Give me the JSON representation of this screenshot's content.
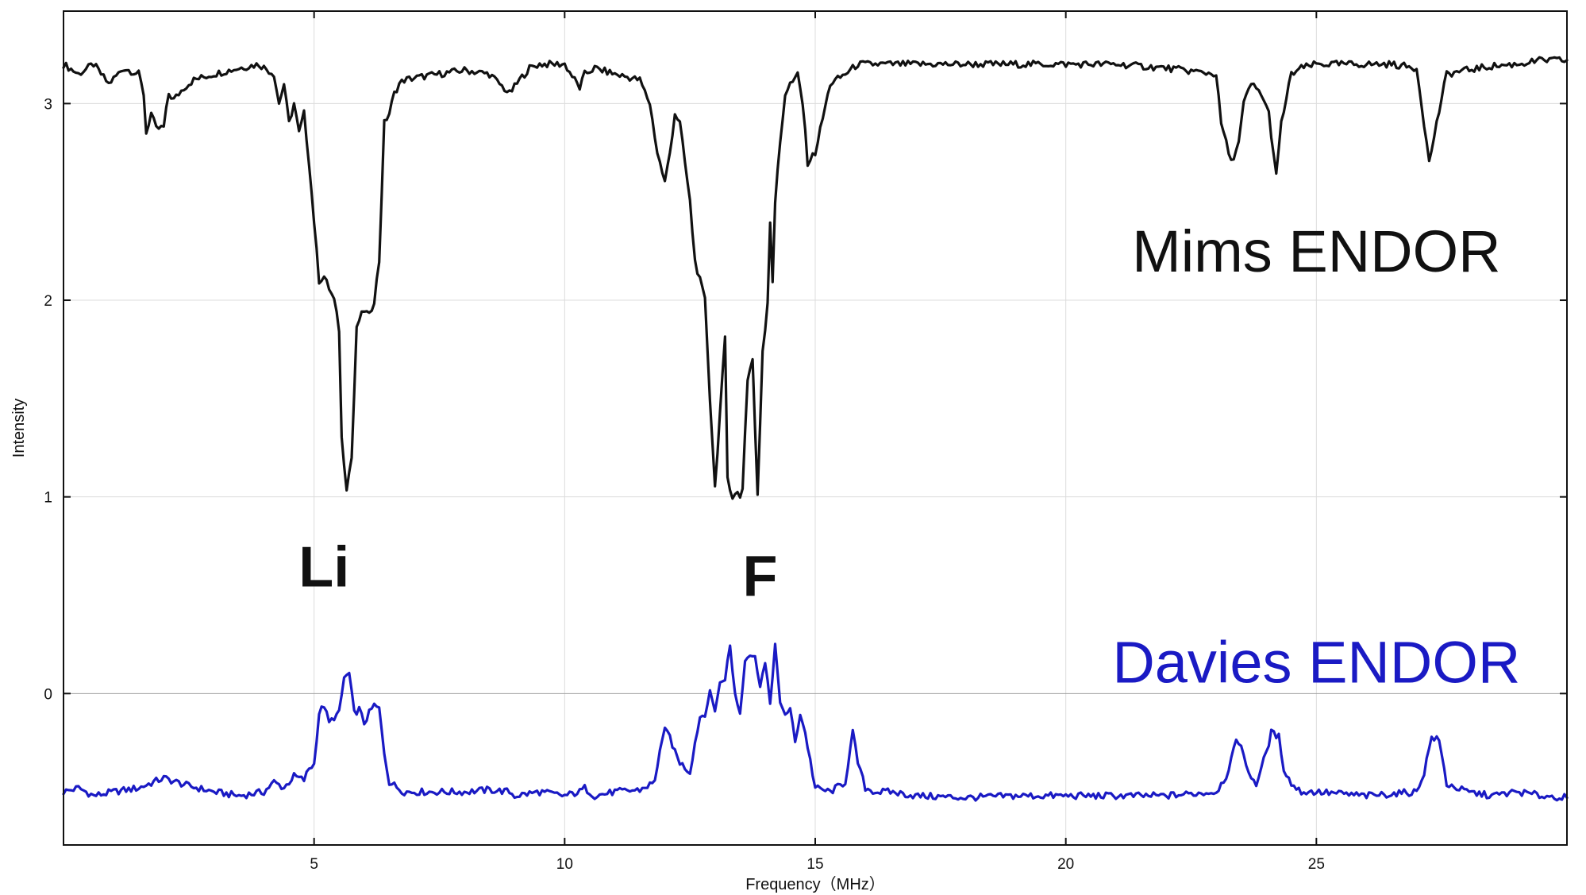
{
  "chart_data": {
    "type": "line",
    "title": "",
    "xlabel": "Frequency（MHz）",
    "ylabel": "Intensity",
    "xlim": [
      0,
      30
    ],
    "ylim": [
      -0.77,
      3.47
    ],
    "x_ticks": [
      5,
      10,
      15,
      20,
      25
    ],
    "y_ticks": [
      0,
      1,
      2,
      3
    ],
    "x_tick_labels": [
      "5",
      "10",
      "15",
      "20",
      "25"
    ],
    "y_tick_labels": [
      "0",
      "1",
      "2",
      "3"
    ],
    "grid": true,
    "legend": "none",
    "annotations": [
      {
        "text": "Mims ENDOR",
        "x": 25,
        "y": 2.25,
        "color": "#111111"
      },
      {
        "text": "Davies ENDOR",
        "x": 25,
        "y": 0.16,
        "color": "#1a1ac4"
      },
      {
        "text": "Li",
        "x": 5.2,
        "y": 0.65,
        "color": "#111111"
      },
      {
        "text": "F",
        "x": 13.9,
        "y": 0.6,
        "color": "#111111"
      }
    ],
    "series": [
      {
        "name": "Mims ENDOR",
        "color": "#111111",
        "x": [
          0.0,
          0.3,
          0.6,
          0.9,
          1.2,
          1.5,
          1.6,
          1.65,
          1.75,
          1.85,
          2.0,
          2.1,
          2.2,
          2.4,
          2.6,
          3.0,
          3.5,
          3.9,
          4.2,
          4.3,
          4.4,
          4.5,
          4.6,
          4.7,
          4.8,
          4.9,
          5.0,
          5.1,
          5.2,
          5.4,
          5.5,
          5.55,
          5.65,
          5.75,
          5.85,
          5.9,
          6.0,
          6.1,
          6.2,
          6.3,
          6.4,
          6.5,
          6.6,
          6.7,
          6.8,
          7.0,
          7.5,
          8.0,
          8.5,
          8.9,
          9.1,
          9.3,
          9.5,
          10.0,
          10.3,
          10.4,
          10.6,
          11.0,
          11.5,
          11.7,
          11.85,
          12.0,
          12.1,
          12.2,
          12.3,
          12.5,
          12.6,
          12.8,
          12.9,
          13.0,
          13.2,
          13.25,
          13.35,
          13.45,
          13.5,
          13.55,
          13.65,
          13.75,
          13.85,
          13.95,
          14.0,
          14.05,
          14.1,
          14.15,
          14.2,
          14.3,
          14.4,
          14.5,
          14.6,
          14.65,
          14.75,
          14.85,
          15.0,
          15.3,
          15.6,
          15.75,
          15.85,
          16.0,
          16.2,
          16.5,
          17.0,
          18.0,
          19.0,
          20.0,
          21.0,
          22.0,
          23.0,
          23.1,
          23.3,
          23.45,
          23.55,
          23.7,
          23.9,
          24.05,
          24.2,
          24.3,
          24.5,
          24.7,
          25.0,
          25.5,
          26.0,
          26.5,
          27.0,
          27.1,
          27.25,
          27.4,
          27.6,
          28.0,
          28.5,
          29.0,
          29.5,
          30.0
        ],
        "y": [
          3.2,
          3.15,
          3.2,
          3.1,
          3.18,
          3.15,
          3.05,
          2.85,
          2.95,
          2.87,
          2.88,
          3.05,
          3.02,
          3.08,
          3.12,
          3.15,
          3.18,
          3.2,
          3.15,
          3.0,
          3.1,
          2.9,
          3.0,
          2.85,
          2.95,
          2.7,
          2.4,
          2.1,
          2.12,
          2.0,
          1.85,
          1.3,
          1.05,
          1.2,
          1.85,
          1.9,
          1.95,
          1.92,
          2.0,
          2.2,
          2.9,
          2.95,
          3.05,
          3.1,
          3.12,
          3.13,
          3.15,
          3.17,
          3.15,
          3.05,
          3.12,
          3.18,
          3.2,
          3.2,
          3.08,
          3.15,
          3.18,
          3.15,
          3.12,
          3.0,
          2.75,
          2.6,
          2.75,
          2.95,
          2.9,
          2.5,
          2.2,
          2.0,
          1.5,
          1.05,
          1.8,
          1.1,
          1.0,
          1.02,
          1.0,
          1.05,
          1.6,
          1.7,
          1.0,
          1.75,
          1.85,
          2.0,
          2.4,
          2.1,
          2.5,
          2.8,
          3.05,
          3.1,
          3.12,
          3.15,
          3.0,
          2.7,
          2.75,
          3.1,
          3.15,
          3.18,
          3.2,
          3.2,
          3.2,
          3.2,
          3.2,
          3.2,
          3.2,
          3.2,
          3.2,
          3.18,
          3.15,
          2.9,
          2.7,
          2.8,
          3.0,
          3.1,
          3.05,
          2.95,
          2.63,
          2.9,
          3.15,
          3.18,
          3.2,
          3.2,
          3.2,
          3.2,
          3.18,
          3.0,
          2.7,
          2.9,
          3.15,
          3.17,
          3.19,
          3.2,
          3.22,
          3.22
        ]
      },
      {
        "name": "Davies ENDOR",
        "color": "#1a1ac4",
        "x": [
          0.0,
          0.3,
          0.6,
          1.0,
          1.5,
          2.0,
          2.5,
          3.0,
          3.5,
          4.0,
          4.2,
          4.4,
          4.6,
          4.8,
          4.9,
          5.0,
          5.1,
          5.2,
          5.3,
          5.4,
          5.5,
          5.6,
          5.7,
          5.8,
          5.9,
          6.0,
          6.1,
          6.2,
          6.3,
          6.4,
          6.5,
          6.8,
          7.5,
          8.0,
          8.5,
          8.9,
          9.0,
          9.5,
          10.0,
          10.3,
          10.4,
          10.6,
          11.0,
          11.5,
          11.8,
          11.9,
          12.0,
          12.1,
          12.2,
          12.3,
          12.5,
          12.6,
          12.7,
          12.8,
          12.9,
          13.0,
          13.1,
          13.2,
          13.3,
          13.4,
          13.5,
          13.6,
          13.7,
          13.8,
          13.9,
          14.0,
          14.1,
          14.2,
          14.3,
          14.4,
          14.5,
          14.6,
          14.7,
          14.8,
          15.0,
          15.3,
          15.6,
          15.75,
          15.85,
          16.0,
          16.2,
          16.5,
          17.0,
          18.0,
          19.0,
          20.0,
          21.0,
          22.0,
          23.0,
          23.2,
          23.4,
          23.5,
          23.6,
          23.8,
          24.0,
          24.1,
          24.25,
          24.35,
          24.5,
          24.7,
          25.0,
          26.0,
          27.0,
          27.15,
          27.3,
          27.45,
          27.6,
          28.0,
          28.5,
          29.0,
          29.5,
          30.0
        ],
        "y": [
          -0.5,
          -0.48,
          -0.52,
          -0.5,
          -0.48,
          -0.43,
          -0.47,
          -0.5,
          -0.52,
          -0.5,
          -0.45,
          -0.48,
          -0.42,
          -0.44,
          -0.38,
          -0.36,
          -0.1,
          -0.06,
          -0.15,
          -0.12,
          -0.1,
          0.08,
          0.1,
          -0.1,
          -0.08,
          -0.15,
          -0.1,
          -0.06,
          -0.08,
          -0.3,
          -0.45,
          -0.5,
          -0.5,
          -0.5,
          -0.49,
          -0.5,
          -0.52,
          -0.5,
          -0.52,
          -0.5,
          -0.48,
          -0.52,
          -0.5,
          -0.49,
          -0.45,
          -0.28,
          -0.19,
          -0.22,
          -0.3,
          -0.35,
          -0.4,
          -0.25,
          -0.12,
          -0.1,
          0.0,
          -0.08,
          0.05,
          0.08,
          0.24,
          0.0,
          -0.1,
          0.18,
          0.2,
          0.18,
          0.05,
          0.15,
          -0.05,
          0.25,
          -0.06,
          -0.1,
          -0.08,
          -0.25,
          -0.1,
          -0.2,
          -0.48,
          -0.5,
          -0.45,
          -0.2,
          -0.35,
          -0.48,
          -0.5,
          -0.5,
          -0.52,
          -0.53,
          -0.52,
          -0.52,
          -0.52,
          -0.52,
          -0.5,
          -0.42,
          -0.25,
          -0.25,
          -0.38,
          -0.46,
          -0.3,
          -0.2,
          -0.22,
          -0.38,
          -0.46,
          -0.5,
          -0.5,
          -0.52,
          -0.5,
          -0.4,
          -0.22,
          -0.24,
          -0.46,
          -0.5,
          -0.52,
          -0.5,
          -0.52,
          -0.53
        ]
      }
    ]
  }
}
